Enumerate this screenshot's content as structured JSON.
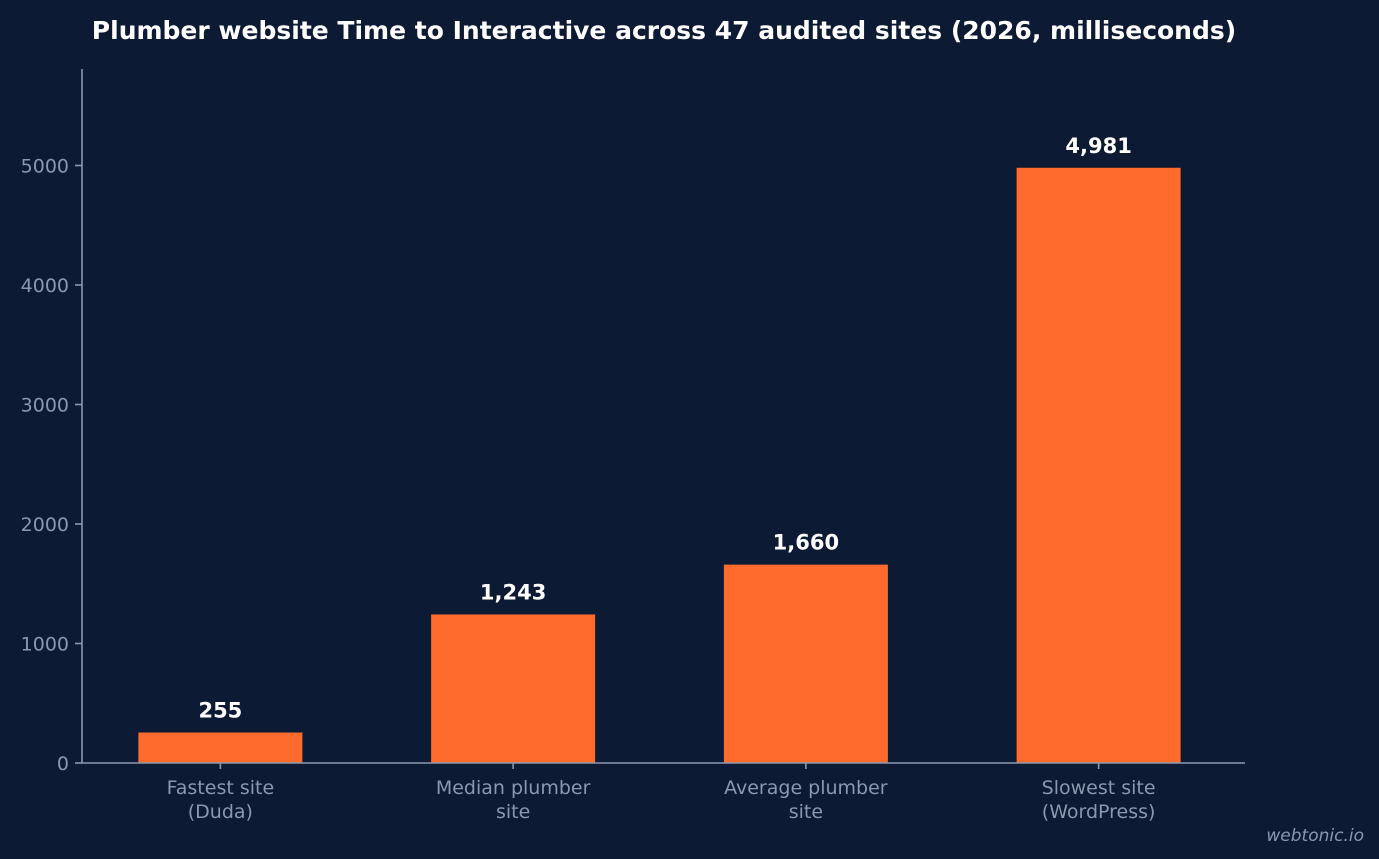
{
  "chart_data": {
    "type": "bar",
    "title": "Plumber website Time to Interactive across 47 audited sites (2026, milliseconds)",
    "categories": [
      [
        "Fastest site",
        "(Duda)"
      ],
      [
        "Median plumber",
        "site"
      ],
      [
        "Average plumber",
        "site"
      ],
      [
        "Slowest site",
        "(WordPress)"
      ]
    ],
    "values": [
      255,
      1243,
      1660,
      4981
    ],
    "data_labels": [
      "255",
      "1,243",
      "1,660",
      "4,981"
    ],
    "ylim": [
      0,
      5800
    ],
    "yticks": [
      0,
      1000,
      2000,
      3000,
      4000,
      5000
    ],
    "xlabel": "",
    "ylabel": "",
    "grid": false,
    "legend": "none",
    "bar_color": "#ff6b2c"
  },
  "watermark": "webtonic.io"
}
